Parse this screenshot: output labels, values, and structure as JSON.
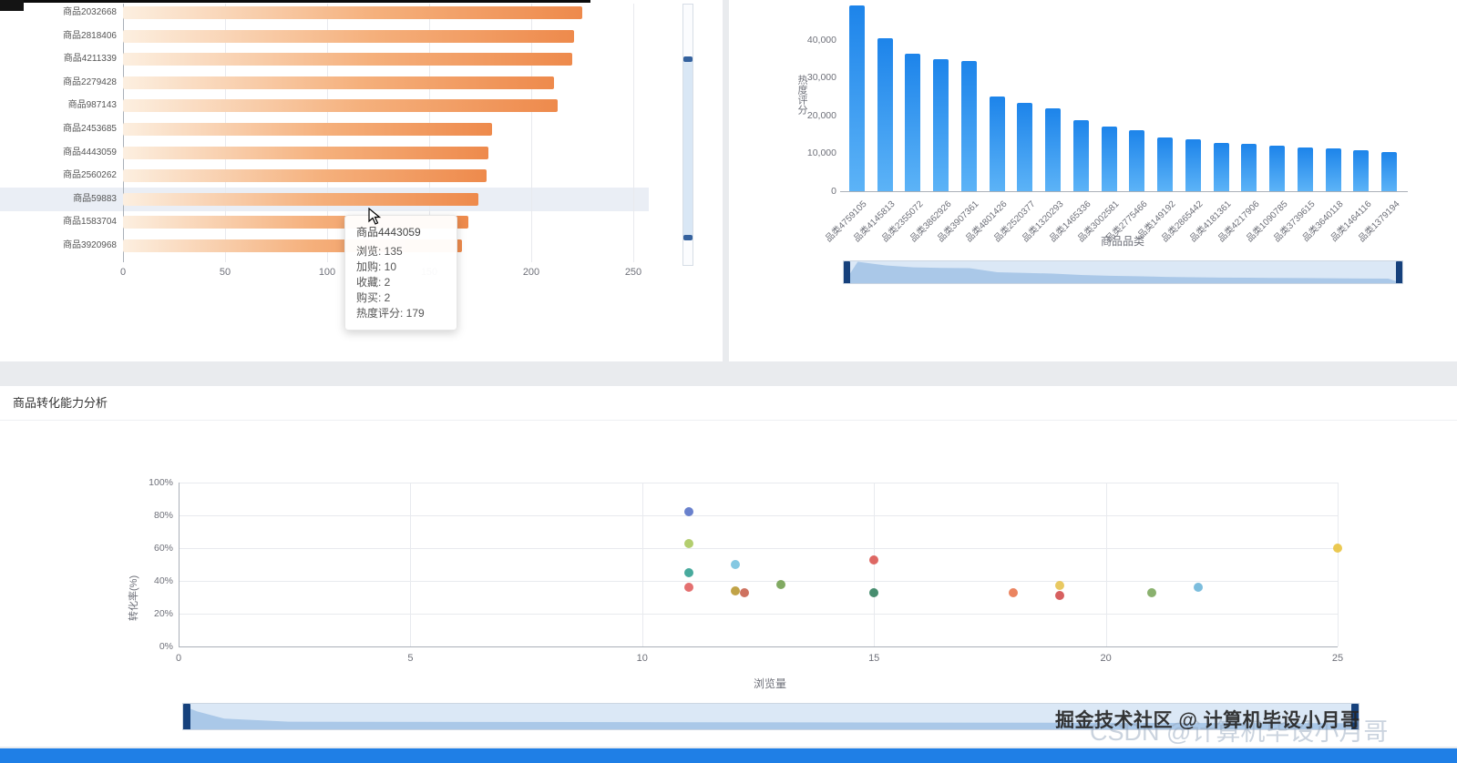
{
  "page": {
    "watermark_primary": "掘金技术社区 @ 计算机毕设小月哥",
    "watermark_secondary": "CSDN @计算机毕设小月哥"
  },
  "tooltip": {
    "title": "商品4443059",
    "lines": [
      "浏览: 135",
      "加购: 10",
      "收藏: 2",
      "购买: 2",
      "热度评分: 179"
    ]
  },
  "chart_data": [
    {
      "id": "product-hotness-bar",
      "type": "bar",
      "orientation": "horizontal",
      "categories": [
        "商品2032668",
        "商品2818406",
        "商品4211339",
        "商品2279428",
        "商品987143",
        "商品2453685",
        "商品4443059",
        "商品2560262",
        "商品59883",
        "商品1583704",
        "商品3920968"
      ],
      "values": [
        225,
        221,
        220,
        211,
        213,
        181,
        179,
        178,
        174,
        169,
        166
      ],
      "xticks": [
        0,
        50,
        100,
        150,
        200,
        250
      ],
      "xlim": [
        0,
        250
      ],
      "highlighted_category": "商品59883",
      "bar_color_start": "#fcefe0",
      "bar_color_end": "#ee8a4c"
    },
    {
      "id": "category-hotness-bar",
      "type": "bar",
      "orientation": "vertical",
      "ylabel": "热度评分",
      "xlabel": "商品品类",
      "ytick_labels": [
        "40,000",
        "30,000",
        "20,000",
        "10,000",
        "0"
      ],
      "ytick_values": [
        40000,
        30000,
        20000,
        10000,
        0
      ],
      "ylim": [
        0,
        50000
      ],
      "categories": [
        "品类4759105",
        "品类4145813",
        "品类2355072",
        "品类3862926",
        "品类3907361",
        "品类4801426",
        "品类2520377",
        "品类1320293",
        "品类1465336",
        "品类3002581",
        "品类2775466",
        "品类149192",
        "品类2865442",
        "品类4181361",
        "品类4217906",
        "品类1090785",
        "品类3739615",
        "品类3640118",
        "品类1464116",
        "品类1379194"
      ],
      "values": [
        49000,
        40500,
        36200,
        34900,
        34300,
        24900,
        23400,
        21900,
        18800,
        17000,
        16000,
        14300,
        13600,
        12800,
        12500,
        12000,
        11600,
        11300,
        10800,
        10300
      ],
      "bar_color": "#1d84ea"
    },
    {
      "id": "conversion-scatter",
      "type": "scatter",
      "title": "商品转化能力分析",
      "xlabel": "浏览量",
      "ylabel": "转化率(%)",
      "xticks": [
        0,
        5,
        10,
        15,
        20,
        25
      ],
      "ytick_labels": [
        "100%",
        "80%",
        "60%",
        "40%",
        "20%",
        "0%"
      ],
      "ytick_values": [
        100,
        80,
        60,
        40,
        20,
        0
      ],
      "xlim": [
        0,
        25
      ],
      "ylim": [
        0,
        100
      ],
      "points": [
        {
          "x": 11,
          "y": 82,
          "color": "#5470c6"
        },
        {
          "x": 11,
          "y": 63,
          "color": "#a8c75b"
        },
        {
          "x": 12,
          "y": 50,
          "color": "#73c0de"
        },
        {
          "x": 11,
          "y": 45,
          "color": "#2f9e8f"
        },
        {
          "x": 11,
          "y": 36,
          "color": "#e05c5c"
        },
        {
          "x": 12,
          "y": 34,
          "color": "#b8962e"
        },
        {
          "x": 12.2,
          "y": 33,
          "color": "#c75e4a"
        },
        {
          "x": 13,
          "y": 38,
          "color": "#6f9e4c"
        },
        {
          "x": 15,
          "y": 53,
          "color": "#d9534f"
        },
        {
          "x": 15,
          "y": 33,
          "color": "#2e7d5b"
        },
        {
          "x": 18,
          "y": 33,
          "color": "#e8734a"
        },
        {
          "x": 19,
          "y": 37,
          "color": "#e6c14c"
        },
        {
          "x": 19,
          "y": 31,
          "color": "#d14a4a"
        },
        {
          "x": 21,
          "y": 33,
          "color": "#7aa65a"
        },
        {
          "x": 22,
          "y": 36,
          "color": "#6ab4d8"
        },
        {
          "x": 25,
          "y": 60,
          "color": "#e8c23a"
        }
      ]
    }
  ]
}
